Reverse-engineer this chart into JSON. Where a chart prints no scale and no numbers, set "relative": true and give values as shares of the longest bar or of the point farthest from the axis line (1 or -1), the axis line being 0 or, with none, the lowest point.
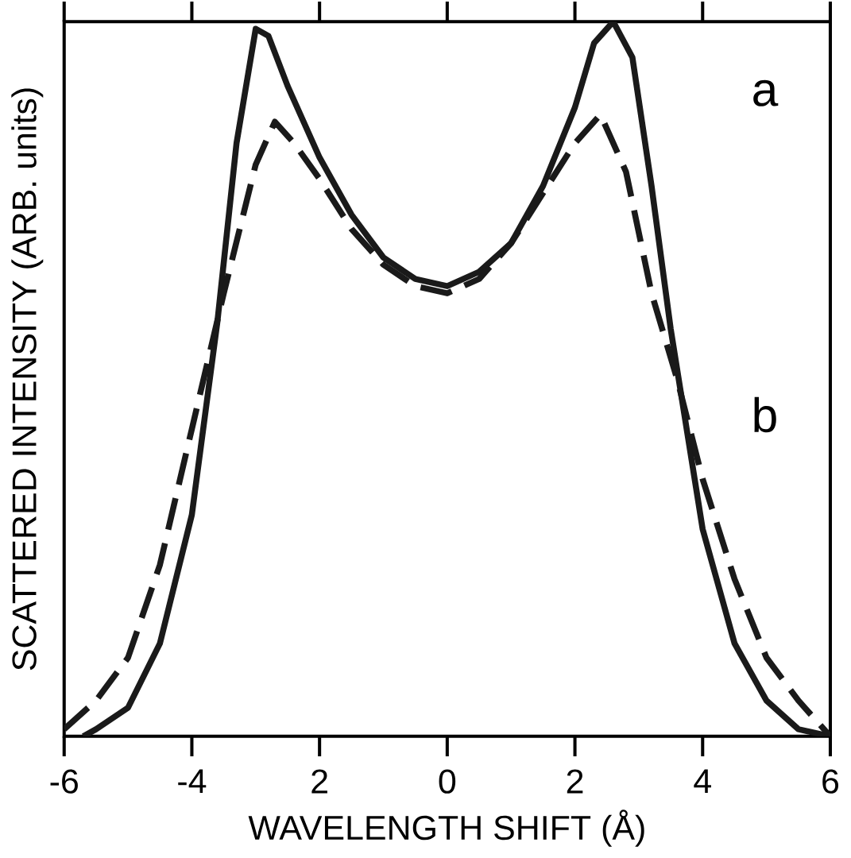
{
  "chart_data": {
    "type": "line",
    "relative": true,
    "xlabel": "WAVELENGTH SHIFT (Å)",
    "ylabel": "SCATTERED INTENSITY (ARB. units)",
    "xlim": [
      -6,
      6
    ],
    "xticks": [
      -6,
      {
        "value": -4,
        "label": "-4"
      },
      {
        "value": -2,
        "label": "2"
      },
      0,
      2,
      4,
      6
    ],
    "tick_labels": "x",
    "marker": "none",
    "legend": false,
    "x": [
      -5.7,
      -5.5,
      -5,
      -4.5,
      -4,
      -3.6,
      -3.3,
      -3,
      -2.8,
      -2.5,
      -2,
      -1.5,
      -1,
      -0.5,
      0,
      0.5,
      1,
      1.5,
      2,
      2.3,
      2.6,
      2.9,
      3.2,
      3.5,
      4,
      4.5,
      5,
      5.5,
      6
    ],
    "series": [
      {
        "name": "a",
        "color": "#1a1a1a",
        "line_style": "solid",
        "values": [
          0,
          0.01,
          0.04,
          0.13,
          0.31,
          0.58,
          0.83,
          0.99,
          0.98,
          0.91,
          0.81,
          0.73,
          0.67,
          0.64,
          0.63,
          0.65,
          0.69,
          0.77,
          0.88,
          0.97,
          1.0,
          0.95,
          0.77,
          0.57,
          0.29,
          0.13,
          0.05,
          0.01,
          0
        ]
      },
      {
        "name": "b",
        "color": "#1a1a1a",
        "line_style": "dashed",
        "x": [
          -6,
          -5.5,
          -5,
          -4.5,
          -4,
          -3.5,
          -3,
          -2.7,
          -2.4,
          -2,
          -1.5,
          -1,
          -0.5,
          0,
          0.5,
          1,
          1.5,
          2,
          2.4,
          2.8,
          3.2,
          3.6,
          4,
          4.5,
          5,
          5.5,
          6
        ],
        "values": [
          0.01,
          0.05,
          0.11,
          0.24,
          0.43,
          0.62,
          0.8,
          0.86,
          0.83,
          0.78,
          0.71,
          0.66,
          0.63,
          0.62,
          0.64,
          0.69,
          0.76,
          0.83,
          0.87,
          0.79,
          0.62,
          0.5,
          0.36,
          0.22,
          0.11,
          0.05,
          0
        ]
      }
    ]
  }
}
